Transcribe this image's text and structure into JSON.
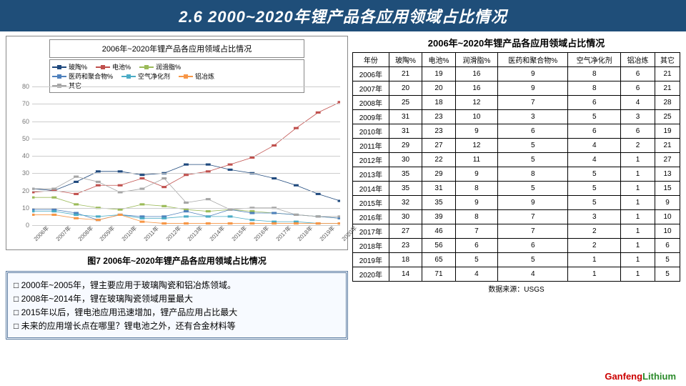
{
  "header": {
    "title": "2.6 2000~2020年锂产品各应用领域占比情况"
  },
  "chart": {
    "type": "line",
    "title": "2006年~2020年锂产品各应用领域占比情况",
    "caption": "图7 2006年~2020年锂产品各应用领域占比情况",
    "categories": [
      "2006年",
      "2007年",
      "2008年",
      "2009年",
      "2010年",
      "2011年",
      "2012年",
      "2013年",
      "2014年",
      "2015年",
      "2016年",
      "2017年",
      "2018年",
      "2019年",
      "2020年"
    ],
    "ylim": [
      0,
      80
    ],
    "ytick_step": 10,
    "background_color": "#ffffff",
    "grid_color": "#cccccc",
    "axis_fontsize": 9,
    "series": [
      {
        "name": "玻陶%",
        "color": "#1f497d",
        "marker": "diamond",
        "values": [
          21,
          20,
          25,
          31,
          31,
          29,
          30,
          35,
          35,
          32,
          30,
          27,
          23,
          18,
          14
        ]
      },
      {
        "name": "电池%",
        "color": "#c0504d",
        "marker": "square",
        "values": [
          19,
          20,
          18,
          23,
          23,
          27,
          22,
          29,
          31,
          35,
          39,
          46,
          56,
          65,
          71
        ]
      },
      {
        "name": "润滑脂%",
        "color": "#9bbb59",
        "marker": "triangle",
        "values": [
          16,
          16,
          12,
          10,
          9,
          12,
          11,
          9,
          8,
          9,
          8,
          7,
          6,
          5,
          4
        ]
      },
      {
        "name": "医药和聚合物%",
        "color": "#4f81bd",
        "marker": "x",
        "values": [
          9,
          9,
          7,
          3,
          6,
          5,
          5,
          8,
          5,
          9,
          7,
          7,
          6,
          5,
          4
        ]
      },
      {
        "name": "空气净化剂",
        "color": "#4bacc6",
        "marker": "star",
        "values": [
          8,
          8,
          6,
          5,
          6,
          4,
          4,
          5,
          5,
          5,
          3,
          2,
          2,
          1,
          1
        ]
      },
      {
        "name": "铝冶炼",
        "color": "#f79646",
        "marker": "circle",
        "values": [
          6,
          6,
          4,
          3,
          6,
          2,
          1,
          1,
          1,
          1,
          1,
          1,
          1,
          1,
          1
        ]
      },
      {
        "name": "其它",
        "color": "#a6a6a6",
        "marker": "plus",
        "values": [
          21,
          21,
          28,
          25,
          19,
          21,
          27,
          13,
          15,
          9,
          10,
          10,
          6,
          5,
          5
        ]
      }
    ]
  },
  "notes": {
    "items": [
      "2000年~2005年，锂主要应用于玻璃陶瓷和铝冶炼领域。",
      "2008年~2014年，锂在玻璃陶瓷领域用量最大",
      "2015年以后，锂电池应用迅速增加，锂产品应用占比最大",
      "未来的应用增长点在哪里？锂电池之外，还有合金材料等"
    ]
  },
  "table": {
    "title": "2006年~2020年锂产品各应用领域占比情况",
    "columns": [
      "年份",
      "玻陶%",
      "电池%",
      "润滑脂%",
      "医药和聚合物%",
      "空气净化剂",
      "铝冶炼",
      "其它"
    ],
    "rows": [
      [
        "2006年",
        21,
        19,
        16,
        9,
        8,
        6,
        21
      ],
      [
        "2007年",
        20,
        20,
        16,
        9,
        8,
        6,
        21
      ],
      [
        "2008年",
        25,
        18,
        12,
        7,
        6,
        4,
        28
      ],
      [
        "2009年",
        31,
        23,
        10,
        3,
        5,
        3,
        25
      ],
      [
        "2010年",
        31,
        23,
        9,
        6,
        6,
        6,
        19
      ],
      [
        "2011年",
        29,
        27,
        12,
        5,
        4,
        2,
        21
      ],
      [
        "2012年",
        30,
        22,
        11,
        5,
        4,
        1,
        27
      ],
      [
        "2013年",
        35,
        29,
        9,
        8,
        5,
        1,
        13
      ],
      [
        "2014年",
        35,
        31,
        8,
        5,
        5,
        1,
        15
      ],
      [
        "2015年",
        32,
        35,
        9,
        9,
        5,
        1,
        9
      ],
      [
        "2016年",
        30,
        39,
        8,
        7,
        3,
        1,
        10
      ],
      [
        "2017年",
        27,
        46,
        7,
        7,
        2,
        1,
        10
      ],
      [
        "2018年",
        23,
        56,
        6,
        6,
        2,
        1,
        6
      ],
      [
        "2019年",
        18,
        65,
        5,
        5,
        1,
        1,
        5
      ],
      [
        "2020年",
        14,
        71,
        4,
        4,
        1,
        1,
        5
      ]
    ]
  },
  "footer": {
    "source": "数据来源：USGS",
    "brand_g": "Ganfeng",
    "brand_l": "Lithium"
  }
}
